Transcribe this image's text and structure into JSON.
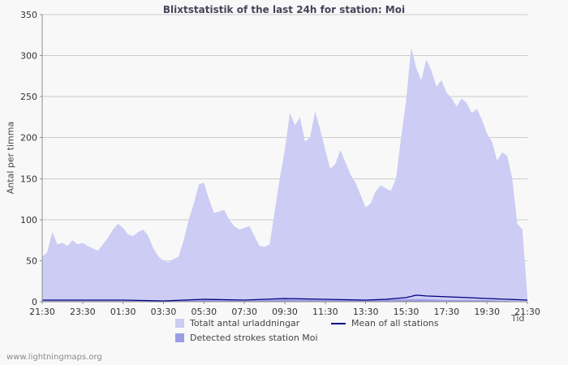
{
  "title": "Blixtstatistik of the last 24h for station: Moi",
  "chart_data": {
    "type": "area",
    "title": "Blixtstatistik of the last 24h for station: Moi",
    "xlabel": "Tid",
    "ylabel": "Antal per timma",
    "xlim": [
      0,
      24
    ],
    "ylim": [
      0,
      350
    ],
    "y_ticks": [
      0,
      50,
      100,
      150,
      200,
      250,
      300,
      350
    ],
    "x_ticks": {
      "hours": [
        0,
        2,
        4,
        6,
        8,
        10,
        12,
        14,
        16,
        18,
        20,
        22,
        24
      ],
      "labels": [
        "21:30",
        "23:30",
        "01:30",
        "03:30",
        "05:30",
        "07:30",
        "09:30",
        "11:30",
        "13:30",
        "15:30",
        "17:30",
        "19:30",
        "21:30"
      ]
    },
    "grid": "horizontal",
    "legend_position": "bottom",
    "series": [
      {
        "name": "Totalt antal urladdningar",
        "kind": "area",
        "x_step_hours": 0.25,
        "values": [
          55,
          60,
          85,
          70,
          72,
          68,
          75,
          70,
          72,
          68,
          65,
          62,
          70,
          78,
          88,
          95,
          90,
          82,
          80,
          85,
          88,
          80,
          65,
          55,
          50,
          48,
          52,
          55,
          75,
          100,
          120,
          143,
          145,
          125,
          108,
          110,
          112,
          100,
          92,
          88,
          90,
          92,
          80,
          68,
          67,
          70,
          110,
          150,
          185,
          230,
          215,
          225,
          195,
          200,
          232,
          210,
          185,
          162,
          168,
          185,
          170,
          155,
          145,
          130,
          115,
          120,
          135,
          142,
          138,
          135,
          150,
          200,
          245,
          310,
          285,
          270,
          295,
          282,
          262,
          270,
          255,
          248,
          238,
          248,
          242,
          230,
          235,
          222,
          205,
          195,
          172,
          182,
          178,
          150,
          95,
          88,
          5
        ]
      },
      {
        "name": "Detected strokes station Moi",
        "kind": "area",
        "points": [
          [
            0,
            1
          ],
          [
            2,
            1
          ],
          [
            4,
            1
          ],
          [
            6,
            1
          ],
          [
            8,
            2
          ],
          [
            10,
            1
          ],
          [
            12,
            3
          ],
          [
            14,
            2
          ],
          [
            16,
            2
          ],
          [
            18,
            3
          ],
          [
            19,
            3
          ],
          [
            20,
            2
          ],
          [
            22,
            2
          ],
          [
            23,
            1
          ],
          [
            24,
            0
          ]
        ]
      },
      {
        "name": "Mean of all stations",
        "kind": "line",
        "points": [
          [
            0,
            2
          ],
          [
            2,
            2
          ],
          [
            4,
            2
          ],
          [
            6,
            1
          ],
          [
            8,
            3
          ],
          [
            10,
            2
          ],
          [
            12,
            4
          ],
          [
            14,
            3
          ],
          [
            16,
            2
          ],
          [
            17,
            3
          ],
          [
            18,
            5
          ],
          [
            18.5,
            8
          ],
          [
            19,
            7
          ],
          [
            20,
            6
          ],
          [
            21,
            5
          ],
          [
            22,
            4
          ],
          [
            23,
            3
          ],
          [
            24,
            2
          ]
        ]
      }
    ],
    "colors": {
      "total": "#ccccf4",
      "detected": "#9c9ce4",
      "mean": "#000080",
      "grid": "#cccccc",
      "axis": "#909090",
      "tick_text": "#333333"
    }
  },
  "legend": {
    "total_label": "Totalt antal urladdningar",
    "detected_label": "Detected strokes station Moi",
    "mean_label": "Mean of all stations"
  },
  "footer": {
    "link_text": "www.lightningmaps.org"
  }
}
